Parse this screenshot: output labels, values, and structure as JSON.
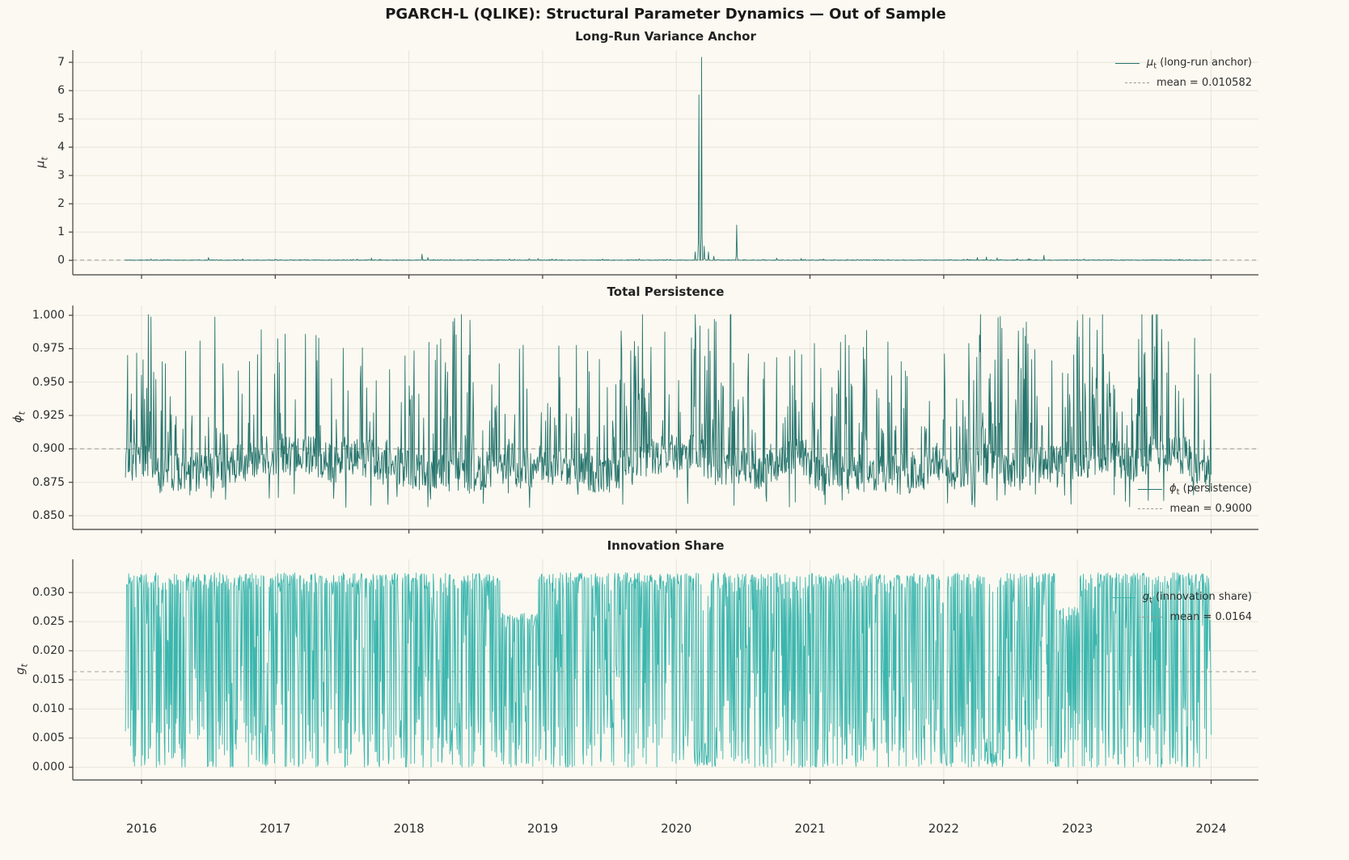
{
  "title": "PGARCH-L (QLIKE): Structural Parameter Dynamics — Out of Sample",
  "colors": {
    "background": "#fbf9f1",
    "grid": "#e6e4da",
    "spine": "#3d3d3d",
    "mean_dash": "#a6a49a",
    "dark_teal": "#26756e",
    "light_teal": "#3bb6ae"
  },
  "x_axis": {
    "xlim": [
      2015.486,
      2024.354
    ],
    "ticks": [
      {
        "v": 2016,
        "label": "2016"
      },
      {
        "v": 2017,
        "label": "2017"
      },
      {
        "v": 2018,
        "label": "2018"
      },
      {
        "v": 2019,
        "label": "2019"
      },
      {
        "v": 2020,
        "label": "2020"
      },
      {
        "v": 2021,
        "label": "2021"
      },
      {
        "v": 2022,
        "label": "2022"
      },
      {
        "v": 2023,
        "label": "2023"
      },
      {
        "v": 2024,
        "label": "2024"
      }
    ]
  },
  "chart_data": [
    {
      "type": "line",
      "title": "Long-Run Variance Anchor",
      "ylabel": {
        "symbol": "μ",
        "sub": "t"
      },
      "ylim": [
        -0.51,
        7.43
      ],
      "yticks": [
        {
          "v": 0,
          "label": "0"
        },
        {
          "v": 1,
          "label": "1"
        },
        {
          "v": 2,
          "label": "2"
        },
        {
          "v": 3,
          "label": "3"
        },
        {
          "v": 4,
          "label": "4"
        },
        {
          "v": 5,
          "label": "5"
        },
        {
          "v": 6,
          "label": "6"
        },
        {
          "v": 7,
          "label": "7"
        }
      ],
      "series": [
        {
          "name": "mu_t",
          "color": "#26756e",
          "legend": {
            "symbol": "μ",
            "sub": "t",
            "rest": " (long-run anchor)"
          }
        }
      ],
      "mean": {
        "value": 0.010582,
        "label": "mean = 0.010582"
      },
      "x_range": [
        2015.88,
        2024.0
      ],
      "n_points": 2040,
      "seed": 20167,
      "generator": "mu",
      "baseline_scale": 0.011,
      "spikes": [
        {
          "t": 2016.07,
          "v": 0.05
        },
        {
          "t": 2016.5,
          "v": 0.1
        },
        {
          "t": 2017.0,
          "v": 0.04
        },
        {
          "t": 2018.1,
          "v": 0.22
        },
        {
          "t": 2018.14,
          "v": 0.1
        },
        {
          "t": 2018.75,
          "v": 0.05
        },
        {
          "t": 2018.9,
          "v": 0.06
        },
        {
          "t": 2019.1,
          "v": 0.04
        },
        {
          "t": 2019.45,
          "v": 0.05
        },
        {
          "t": 2020.14,
          "v": 0.3
        },
        {
          "t": 2020.17,
          "v": 5.85
        },
        {
          "t": 2020.19,
          "v": 7.18
        },
        {
          "t": 2020.21,
          "v": 0.5
        },
        {
          "t": 2020.24,
          "v": 0.3
        },
        {
          "t": 2020.28,
          "v": 0.15
        },
        {
          "t": 2020.45,
          "v": 1.25
        },
        {
          "t": 2020.75,
          "v": 0.08
        },
        {
          "t": 2021.1,
          "v": 0.05
        },
        {
          "t": 2022.25,
          "v": 0.1
        },
        {
          "t": 2022.32,
          "v": 0.12
        },
        {
          "t": 2022.4,
          "v": 0.09
        },
        {
          "t": 2022.55,
          "v": 0.06
        },
        {
          "t": 2022.75,
          "v": 0.18
        },
        {
          "t": 2023.05,
          "v": 0.05
        }
      ]
    },
    {
      "type": "line",
      "title": "Total Persistence",
      "ylabel": {
        "symbol": "ϕ",
        "sub": "t"
      },
      "ylim": [
        0.8397,
        1.0073
      ],
      "yticks": [
        {
          "v": 0.85,
          "label": "0.850"
        },
        {
          "v": 0.875,
          "label": "0.875"
        },
        {
          "v": 0.9,
          "label": "0.900"
        },
        {
          "v": 0.925,
          "label": "0.925"
        },
        {
          "v": 0.95,
          "label": "0.950"
        },
        {
          "v": 0.975,
          "label": "0.975"
        },
        {
          "v": 1.0,
          "label": "1.000"
        }
      ],
      "series": [
        {
          "name": "phi_t",
          "color": "#26756e",
          "legend": {
            "symbol": "ϕ",
            "sub": "t",
            "rest": " (persistence)"
          }
        }
      ],
      "mean": {
        "value": 0.9,
        "label": "mean = 0.9000"
      },
      "x_range": [
        2015.88,
        2024.0
      ],
      "n_points": 2040,
      "seed": 77121,
      "generator": "phi",
      "base": 0.884,
      "spike_prob": 0.15,
      "spike_prob_high": 0.31,
      "clamp": [
        0.8535,
        1.0005
      ],
      "high_periods": [
        [
          2016.0,
          2016.3
        ],
        [
          2016.5,
          2016.62
        ],
        [
          2018.15,
          2018.5
        ],
        [
          2019.5,
          2019.85
        ],
        [
          2020.1,
          2020.5
        ],
        [
          2021.25,
          2021.55
        ],
        [
          2022.15,
          2022.75
        ],
        [
          2022.95,
          2023.25
        ],
        [
          2023.4,
          2023.6
        ]
      ]
    },
    {
      "type": "line",
      "title": "Innovation Share",
      "ylabel": {
        "symbol": "g",
        "sub": "t"
      },
      "ylim": [
        -0.0022,
        0.0357
      ],
      "yticks": [
        {
          "v": 0.0,
          "label": "0.000"
        },
        {
          "v": 0.005,
          "label": "0.005"
        },
        {
          "v": 0.01,
          "label": "0.010"
        },
        {
          "v": 0.015,
          "label": "0.015"
        },
        {
          "v": 0.02,
          "label": "0.020"
        },
        {
          "v": 0.025,
          "label": "0.025"
        },
        {
          "v": 0.03,
          "label": "0.030"
        }
      ],
      "series": [
        {
          "name": "g_t",
          "color": "#3bb6ae",
          "legend": {
            "symbol": "g",
            "sub": "t",
            "rest": " (innovation share)"
          }
        }
      ],
      "mean": {
        "value": 0.0164,
        "label": "mean = 0.0164"
      },
      "x_range": [
        2015.88,
        2024.0
      ],
      "n_points": 2040,
      "seed": 43811,
      "generator": "g",
      "cap": 0.0334,
      "reduced_cap_periods": [
        [
          2018.68,
          2018.97,
          0.0265
        ],
        [
          2022.84,
          2023.02,
          0.0275
        ]
      ],
      "low_density_periods": [
        [
          2020.13,
          2020.26
        ],
        [
          2022.3,
          2022.4
        ],
        [
          2021.97,
          2022.03
        ]
      ]
    }
  ]
}
